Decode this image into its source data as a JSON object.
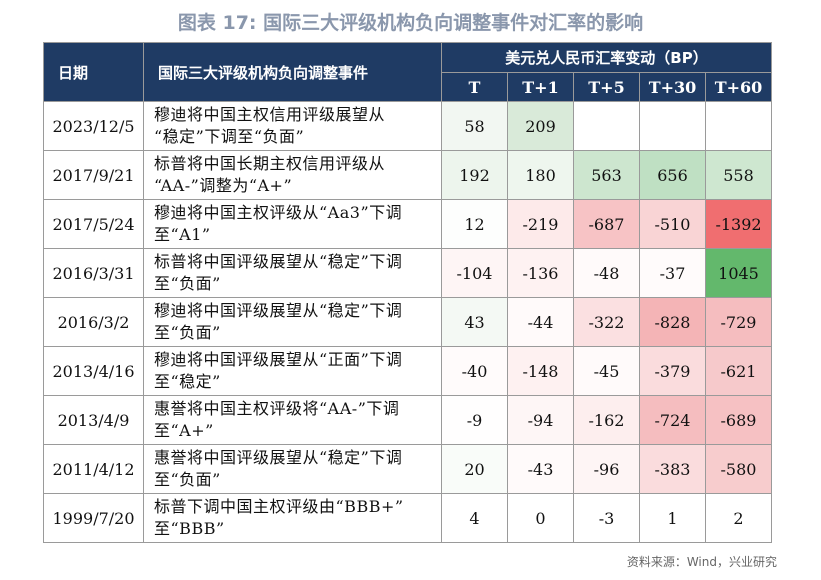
{
  "title": "图表 17: 国际三大评级机构负向调整事件对汇率的影响",
  "table": {
    "headers": {
      "date": "日期",
      "event": "国际三大评级机构负向调整事件",
      "group": "美元兑人民币汇率变动（BP）",
      "cols": [
        "T",
        "T+1",
        "T+5",
        "T+30",
        "T+60"
      ]
    },
    "rows": [
      {
        "date": "2023/12/5",
        "event": [
          "穆迪将中国主权信用评级展望从",
          "“稳定”下调至“负面”"
        ],
        "values": [
          "58",
          "209",
          "",
          "",
          ""
        ],
        "colors": [
          "#f2f7f2",
          "#d9ead9",
          "#ffffff",
          "#ffffff",
          "#ffffff"
        ]
      },
      {
        "date": "2017/9/21",
        "event": [
          "标普将中国长期主权信用评级从",
          "“AA-”调整为“A+”"
        ],
        "values": [
          "192",
          "180",
          "563",
          "656",
          "558"
        ],
        "colors": [
          "#edf5ed",
          "#eef6ee",
          "#cde6cf",
          "#bfe0c3",
          "#cee7d0"
        ]
      },
      {
        "date": "2017/5/24",
        "event": [
          "穆迪将中国主权评级从“Aa3”下调",
          "至“A1”"
        ],
        "values": [
          "12",
          "-219",
          "-687",
          "-510",
          "-1392"
        ],
        "colors": [
          "#fdfefd",
          "#fdeaea",
          "#f7c3c5",
          "#f9d4d5",
          "#f06e70"
        ]
      },
      {
        "date": "2016/3/31",
        "event": [
          "标普将中国评级展望从“稳定”下调",
          "至“负面”"
        ],
        "values": [
          "-104",
          "-136",
          "-48",
          "-37",
          "1045"
        ],
        "colors": [
          "#fef5f5",
          "#fef2f2",
          "#fffafa",
          "#fffbfb",
          "#63b86c"
        ]
      },
      {
        "date": "2016/3/2",
        "event": [
          "穆迪将中国评级展望从“稳定”下调",
          "至“负面”"
        ],
        "values": [
          "43",
          "-44",
          "-322",
          "-828",
          "-729"
        ],
        "colors": [
          "#f4f9f4",
          "#fffafa",
          "#fbe0e1",
          "#f4b4b6",
          "#f5bdbf"
        ]
      },
      {
        "date": "2013/4/16",
        "event": [
          "穆迪将中国评级展望从“正面”下调",
          "至“稳定”"
        ],
        "values": [
          "-40",
          "-148",
          "-45",
          "-379",
          "-621"
        ],
        "colors": [
          "#fffbfb",
          "#fef1f1",
          "#fffafa",
          "#fadcdd",
          "#f6c9cb"
        ]
      },
      {
        "date": "2013/4/9",
        "event": [
          "惠誉将中国主权评级将“AA-”下调",
          "至“A+”"
        ],
        "values": [
          "-9",
          "-94",
          "-162",
          "-724",
          "-689"
        ],
        "colors": [
          "#fffefe",
          "#fef6f6",
          "#fdeeee",
          "#f5bdbf",
          "#f6c1c3"
        ]
      },
      {
        "date": "2011/4/12",
        "event": [
          "惠誉将中国评级展望从“稳定”下调",
          "至“负面”"
        ],
        "values": [
          "20",
          "-43",
          "-96",
          "-383",
          "-580"
        ],
        "colors": [
          "#f9fcf9",
          "#fffafa",
          "#fef5f5",
          "#fadcdd",
          "#f7cccd"
        ]
      },
      {
        "date": "1999/7/20",
        "event": [
          "标普下调中国主权评级由“BBB+”",
          "至“BBB”"
        ],
        "values": [
          "4",
          "0",
          "-3",
          "1",
          "2"
        ],
        "colors": [
          "#ffffff",
          "#ffffff",
          "#ffffff",
          "#ffffff",
          "#ffffff"
        ]
      }
    ]
  },
  "source": "资料来源：Wind，兴业研究"
}
